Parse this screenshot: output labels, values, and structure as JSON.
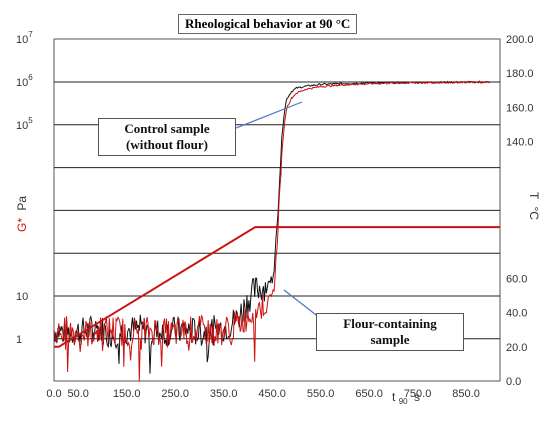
{
  "chart_data": {
    "type": "line",
    "title": "Rheological behavior at 90 °C",
    "xlabel": "t",
    "xlabel_sub": "90",
    "xlabel_unit": "s",
    "ylabel_left_main": "G*",
    "ylabel_left_unit": "Pa",
    "ylabel_right_main": "T",
    "ylabel_right_unit": "°C",
    "xlim": [
      0,
      920
    ],
    "left_log_lim": [
      -1,
      7
    ],
    "right_lim": [
      0,
      200
    ],
    "x_ticks": [
      "0.0",
      "50.0",
      "150.0",
      "250.0",
      "350.0",
      "450.0",
      "550.0",
      "650.0",
      "750.0",
      "850.0"
    ],
    "x_tick_values": [
      0,
      50,
      150,
      250,
      350,
      450,
      550,
      650,
      750,
      850
    ],
    "left_ticks": [
      {
        "label": "10",
        "sup": "7",
        "log": 7
      },
      {
        "label": "10",
        "sup": "6",
        "log": 6
      },
      {
        "label": "10",
        "sup": "5",
        "log": 5
      },
      {
        "label": "10",
        "sup": "",
        "log": 1
      },
      {
        "label": "1",
        "sup": "",
        "log": 0
      }
    ],
    "right_ticks": [
      "200.0",
      "180.0",
      "160.0",
      "140.0",
      "60.0",
      "40.0",
      "20.0",
      "0.0"
    ],
    "right_tick_values": [
      200,
      180,
      160,
      140,
      60,
      40,
      20,
      0
    ],
    "grid_log_levels": [
      6,
      5,
      4,
      3,
      2,
      1,
      0
    ],
    "series": [
      {
        "name": "Control sample (without flour)",
        "color": "#111111",
        "axis": "left_log",
        "x": [
          0,
          30,
          60,
          90,
          120,
          150,
          180,
          210,
          240,
          270,
          300,
          330,
          360,
          380,
          400,
          410,
          420,
          430,
          440,
          450,
          455,
          460,
          465,
          470,
          475,
          480,
          490,
          500,
          520,
          550,
          600,
          650,
          700,
          750,
          800,
          850,
          900
        ],
        "y": [
          1.6,
          1.4,
          1.5,
          1.8,
          1.3,
          1.6,
          1.7,
          1.4,
          1.5,
          1.6,
          1.4,
          1.6,
          2.0,
          3.2,
          8,
          12,
          15,
          16,
          18,
          25,
          60,
          400,
          5000,
          50000,
          200000,
          400000,
          600000,
          720000,
          800000,
          880000,
          920000,
          950000,
          960000,
          970000,
          980000,
          990000,
          1000000
        ]
      },
      {
        "name": "Flour-containing sample",
        "color": "#cc1111",
        "axis": "left_log",
        "x": [
          0,
          30,
          60,
          90,
          120,
          150,
          180,
          210,
          240,
          270,
          300,
          330,
          360,
          380,
          400,
          410,
          420,
          430,
          440,
          450,
          455,
          460,
          465,
          470,
          475,
          480,
          490,
          500,
          520,
          550,
          600,
          650,
          700,
          750,
          800,
          850,
          900
        ],
        "y": [
          1.4,
          1.6,
          1.3,
          1.5,
          1.7,
          1.4,
          1.5,
          1.6,
          1.3,
          1.5,
          1.6,
          1.4,
          1.7,
          2.2,
          3.5,
          4.5,
          5,
          6,
          7,
          9,
          20,
          150,
          2000,
          20000,
          100000,
          250000,
          420000,
          550000,
          680000,
          780000,
          860000,
          910000,
          940000,
          960000,
          975000,
          990000,
          1000000
        ]
      },
      {
        "name": "Temperature",
        "color": "#cc1111",
        "axis": "right",
        "x": [
          0,
          10,
          415,
          920
        ],
        "y": [
          20,
          20,
          90,
          90
        ]
      }
    ],
    "annotations": [
      {
        "line1": "Control sample",
        "line2": "(without flour)"
      },
      {
        "line1": "Flour-containing",
        "line2": "sample"
      }
    ],
    "grid": true
  }
}
